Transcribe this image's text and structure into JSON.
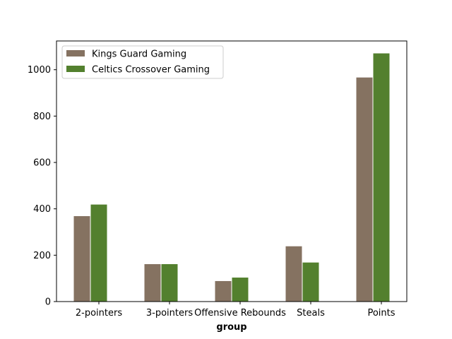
{
  "chart_data": {
    "type": "bar",
    "title": "",
    "xlabel": "group",
    "ylabel": "",
    "categories": [
      "2-pointers",
      "3-pointers",
      "Offensive Rebounds",
      "Steals",
      "Points"
    ],
    "series": [
      {
        "name": "Kings Guard Gaming",
        "values": [
          370,
          163,
          90,
          240,
          968
        ],
        "color": "#857261"
      },
      {
        "name": "Celtics Crossover Gaming",
        "values": [
          420,
          163,
          105,
          170,
          1072
        ],
        "color": "#53802e"
      }
    ],
    "ylim": [
      0,
      1124
    ],
    "yticks": [
      0,
      200,
      400,
      600,
      800,
      1000
    ],
    "grid": false,
    "legend_position": "top-left"
  }
}
